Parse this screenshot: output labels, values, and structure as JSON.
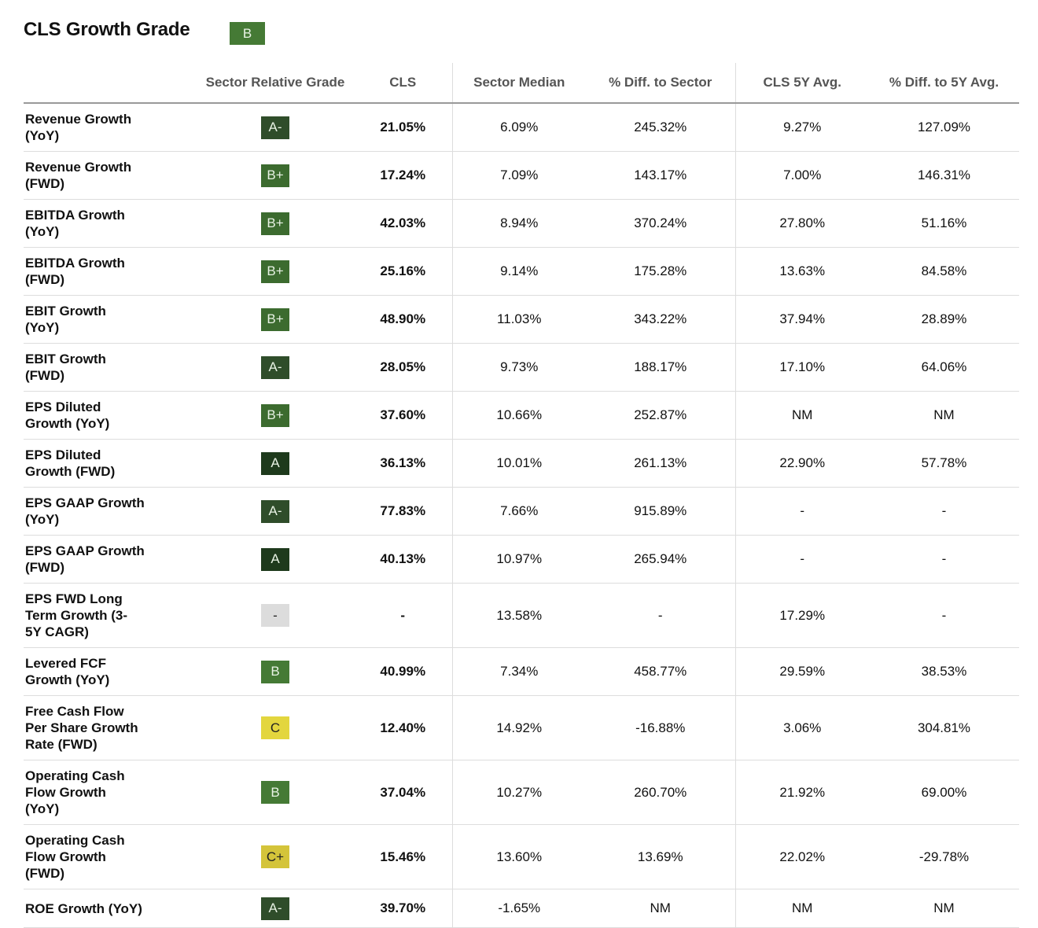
{
  "header": {
    "title": "CLS Growth Grade",
    "overall_grade": "B"
  },
  "columns": [
    "",
    "Sector Relative Grade",
    "CLS",
    "Sector Median",
    "% Diff. to Sector",
    "CLS 5Y Avg.",
    "% Diff. to 5Y Avg."
  ],
  "grade_colors": {
    "A": "#1e3a1c",
    "A-": "#2f4d2a",
    "B+": "#3c6b2f",
    "B": "#457a35",
    "C+": "#d4c43a",
    "C": "#e3d63e",
    "-": "#dcdcdc"
  },
  "rows": [
    {
      "label": "Revenue Growth\n(YoY)",
      "grade": "A-",
      "cls": "21.05%",
      "median": "6.09%",
      "diff": "245.32%",
      "avg5y": "9.27%",
      "diff5y": "127.09%"
    },
    {
      "label": "Revenue Growth\n(FWD)",
      "grade": "B+",
      "cls": "17.24%",
      "median": "7.09%",
      "diff": "143.17%",
      "avg5y": "7.00%",
      "diff5y": "146.31%"
    },
    {
      "label": "EBITDA Growth\n(YoY)",
      "grade": "B+",
      "cls": "42.03%",
      "median": "8.94%",
      "diff": "370.24%",
      "avg5y": "27.80%",
      "diff5y": "51.16%"
    },
    {
      "label": "EBITDA Growth\n(FWD)",
      "grade": "B+",
      "cls": "25.16%",
      "median": "9.14%",
      "diff": "175.28%",
      "avg5y": "13.63%",
      "diff5y": "84.58%"
    },
    {
      "label": "EBIT Growth\n(YoY)",
      "grade": "B+",
      "cls": "48.90%",
      "median": "11.03%",
      "diff": "343.22%",
      "avg5y": "37.94%",
      "diff5y": "28.89%"
    },
    {
      "label": "EBIT Growth\n(FWD)",
      "grade": "A-",
      "cls": "28.05%",
      "median": "9.73%",
      "diff": "188.17%",
      "avg5y": "17.10%",
      "diff5y": "64.06%"
    },
    {
      "label": "EPS Diluted\nGrowth (YoY)",
      "grade": "B+",
      "cls": "37.60%",
      "median": "10.66%",
      "diff": "252.87%",
      "avg5y": "NM",
      "diff5y": "NM"
    },
    {
      "label": "EPS Diluted\nGrowth (FWD)",
      "grade": "A",
      "cls": "36.13%",
      "median": "10.01%",
      "diff": "261.13%",
      "avg5y": "22.90%",
      "diff5y": "57.78%"
    },
    {
      "label": "EPS GAAP Growth\n(YoY)",
      "grade": "A-",
      "cls": "77.83%",
      "median": "7.66%",
      "diff": "915.89%",
      "avg5y": "-",
      "diff5y": "-"
    },
    {
      "label": "EPS GAAP Growth\n(FWD)",
      "grade": "A",
      "cls": "40.13%",
      "median": "10.97%",
      "diff": "265.94%",
      "avg5y": "-",
      "diff5y": "-"
    },
    {
      "label": "EPS FWD Long\nTerm Growth (3-\n5Y CAGR)",
      "grade": "-",
      "cls": "-",
      "median": "13.58%",
      "diff": "-",
      "avg5y": "17.29%",
      "diff5y": "-"
    },
    {
      "label": "Levered FCF\nGrowth (YoY)",
      "grade": "B",
      "cls": "40.99%",
      "median": "7.34%",
      "diff": "458.77%",
      "avg5y": "29.59%",
      "diff5y": "38.53%"
    },
    {
      "label": "Free Cash Flow\nPer Share Growth\nRate (FWD)",
      "grade": "C",
      "cls": "12.40%",
      "median": "14.92%",
      "diff": "-16.88%",
      "avg5y": "3.06%",
      "diff5y": "304.81%"
    },
    {
      "label": "Operating Cash\nFlow Growth\n(YoY)",
      "grade": "B",
      "cls": "37.04%",
      "median": "10.27%",
      "diff": "260.70%",
      "avg5y": "21.92%",
      "diff5y": "69.00%"
    },
    {
      "label": "Operating Cash\nFlow Growth\n(FWD)",
      "grade": "C+",
      "cls": "15.46%",
      "median": "13.60%",
      "diff": "13.69%",
      "avg5y": "22.02%",
      "diff5y": "-29.78%"
    },
    {
      "label": "ROE Growth (YoY)",
      "grade": "A-",
      "cls": "39.70%",
      "median": "-1.65%",
      "diff": "NM",
      "avg5y": "NM",
      "diff5y": "NM"
    }
  ]
}
